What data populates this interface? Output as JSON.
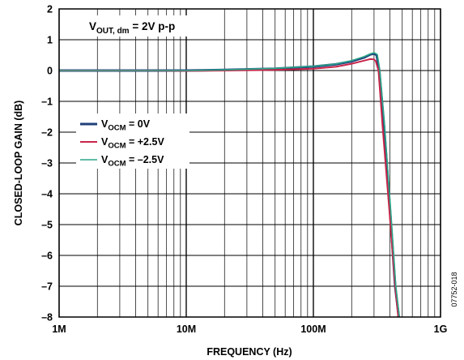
{
  "chart_data": {
    "type": "line",
    "xlabel": "FREQUENCY (Hz)",
    "ylabel": "CLOSED-LOOP GAIN (dB)",
    "x_scale": "log",
    "xlim": [
      1000000,
      1000000000
    ],
    "ylim": [
      -8,
      2
    ],
    "x_ticks": [
      {
        "value": 1000000,
        "label": "1M"
      },
      {
        "value": 10000000,
        "label": "10M"
      },
      {
        "value": 100000000,
        "label": "100M"
      },
      {
        "value": 1000000000,
        "label": "1G"
      }
    ],
    "y_ticks": [
      {
        "value": 2,
        "label": "2"
      },
      {
        "value": 1,
        "label": "1"
      },
      {
        "value": 0,
        "label": "0"
      },
      {
        "value": -1,
        "label": "–1"
      },
      {
        "value": -2,
        "label": "–2"
      },
      {
        "value": -3,
        "label": "–3"
      },
      {
        "value": -4,
        "label": "–4"
      },
      {
        "value": -5,
        "label": "–5"
      },
      {
        "value": -6,
        "label": "–6"
      },
      {
        "value": -7,
        "label": "–7"
      },
      {
        "value": -8,
        "label": "–8"
      }
    ],
    "grid": true,
    "annotation": {
      "main": "V",
      "sub": "OUT, dm",
      "rest": " = 2V p-p"
    },
    "figure_id": "07752-018",
    "legend": {
      "placement": "left",
      "entries": [
        {
          "main": "V",
          "sub": "OCM",
          "rest": " = 0V"
        },
        {
          "main": "V",
          "sub": "OCM",
          "rest": " = +2.5V"
        },
        {
          "main": "V",
          "sub": "OCM",
          "rest": " = –2.5V"
        }
      ]
    },
    "series": [
      {
        "color": "#1f3f7a",
        "points": [
          [
            1000000,
            0
          ],
          [
            5000000,
            0
          ],
          [
            10000000,
            0
          ],
          [
            20000000,
            0.02
          ],
          [
            50000000,
            0.06
          ],
          [
            100000000,
            0.13
          ],
          [
            150000000,
            0.2
          ],
          [
            200000000,
            0.3
          ],
          [
            250000000,
            0.42
          ],
          [
            280000000,
            0.52
          ],
          [
            300000000,
            0.55
          ],
          [
            315000000,
            0.5
          ],
          [
            330000000,
            0.0
          ],
          [
            360000000,
            -1.8
          ],
          [
            400000000,
            -4.5
          ],
          [
            440000000,
            -7.0
          ],
          [
            470000000,
            -8.0
          ]
        ]
      },
      {
        "color": "#c8264a",
        "points": [
          [
            1000000,
            0
          ],
          [
            5000000,
            0
          ],
          [
            10000000,
            -0.01
          ],
          [
            20000000,
            0
          ],
          [
            50000000,
            0.02
          ],
          [
            100000000,
            0.06
          ],
          [
            150000000,
            0.12
          ],
          [
            200000000,
            0.22
          ],
          [
            250000000,
            0.32
          ],
          [
            280000000,
            0.37
          ],
          [
            300000000,
            0.36
          ],
          [
            310000000,
            0.3
          ],
          [
            325000000,
            0.0
          ],
          [
            350000000,
            -1.8
          ],
          [
            395000000,
            -4.5
          ],
          [
            440000000,
            -7.0
          ],
          [
            465000000,
            -8.0
          ]
        ]
      },
      {
        "color": "#2aa68a",
        "points": [
          [
            1000000,
            0
          ],
          [
            5000000,
            0
          ],
          [
            10000000,
            0
          ],
          [
            20000000,
            0.02
          ],
          [
            50000000,
            0.07
          ],
          [
            100000000,
            0.14
          ],
          [
            150000000,
            0.21
          ],
          [
            200000000,
            0.32
          ],
          [
            250000000,
            0.45
          ],
          [
            280000000,
            0.54
          ],
          [
            300000000,
            0.58
          ],
          [
            318000000,
            0.52
          ],
          [
            333000000,
            0.0
          ],
          [
            363000000,
            -1.8
          ],
          [
            405000000,
            -4.5
          ],
          [
            445000000,
            -7.0
          ],
          [
            475000000,
            -8.0
          ]
        ]
      }
    ]
  }
}
